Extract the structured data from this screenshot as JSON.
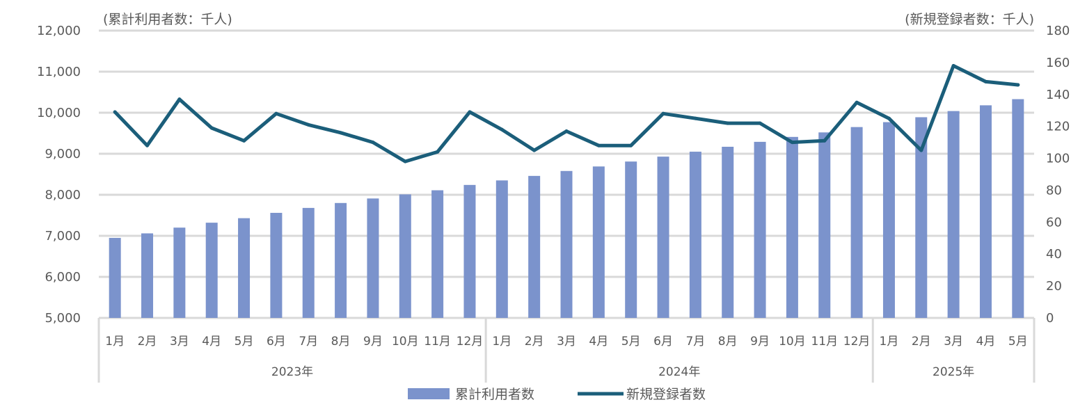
{
  "colors": {
    "bar": "#7b93cc",
    "line": "#1b5e7a",
    "grid": "#d9d9d9",
    "text": "#595959"
  },
  "chart_data": {
    "type": "bar",
    "title": "",
    "left_axis_label": "(累計利用者数：千人)",
    "right_axis_label": "(新規登録者数：千人)",
    "categories": [
      "1月",
      "2月",
      "3月",
      "4月",
      "5月",
      "6月",
      "7月",
      "8月",
      "9月",
      "10月",
      "11月",
      "12月",
      "1月",
      "2月",
      "3月",
      "4月",
      "5月",
      "6月",
      "7月",
      "8月",
      "9月",
      "10月",
      "11月",
      "12月",
      "1月",
      "2月",
      "3月",
      "4月",
      "5月"
    ],
    "groups": [
      {
        "label": "2023年",
        "count": 12
      },
      {
        "label": "2024年",
        "count": 12
      },
      {
        "label": "2025年",
        "count": 5
      }
    ],
    "series": [
      {
        "name": "累計利用者数",
        "type": "bar",
        "axis": "left",
        "values": [
          6950,
          7060,
          7200,
          7320,
          7430,
          7560,
          7680,
          7800,
          7910,
          8010,
          8110,
          8240,
          8350,
          8460,
          8580,
          8690,
          8810,
          8930,
          9050,
          9170,
          9290,
          9410,
          9520,
          9650,
          9770,
          9890,
          10040,
          10180,
          10330
        ]
      },
      {
        "name": "新規登録者数",
        "type": "line",
        "axis": "right",
        "values": [
          129,
          108,
          137,
          119,
          111,
          128,
          121,
          116,
          110,
          98,
          104,
          129,
          118,
          105,
          117,
          108,
          108,
          128,
          125,
          122,
          122,
          110,
          111,
          135,
          125,
          105,
          158,
          148,
          146
        ]
      }
    ],
    "left_axis": {
      "min": 5000,
      "max": 12000,
      "step": 1000,
      "ticks": [
        "5,000",
        "6,000",
        "7,000",
        "8,000",
        "9,000",
        "10,000",
        "11,000",
        "12,000"
      ]
    },
    "right_axis": {
      "min": 0,
      "max": 180,
      "step": 20,
      "ticks": [
        "0",
        "20",
        "40",
        "60",
        "80",
        "100",
        "120",
        "140",
        "160",
        "180"
      ]
    },
    "grid": true,
    "legend_position": "bottom"
  }
}
